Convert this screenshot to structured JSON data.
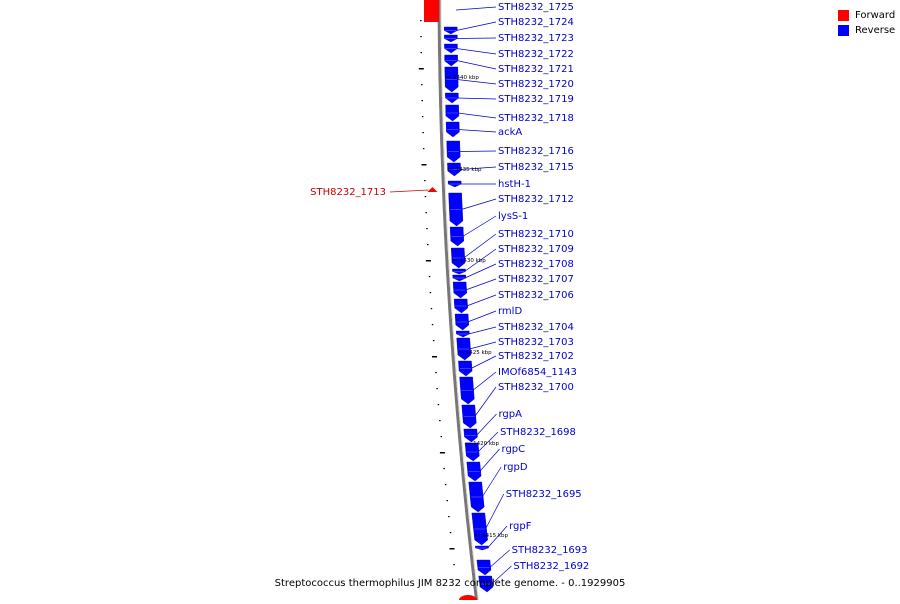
{
  "caption": "Streptococcus thermophilus JIM 8232 complete genome. - 0..1929905",
  "legend": {
    "placement": "top-right",
    "items": [
      {
        "label": "Forward",
        "color": "#ff0000"
      },
      {
        "label": "Reverse",
        "color": "#0000ff"
      }
    ]
  },
  "colors": {
    "forward": "#ff0000",
    "reverse": "#0000ff",
    "forward_label": "#cc0000",
    "reverse_label": "#0000cc",
    "backbone": "#888888"
  },
  "scale_labels": [
    "1440 kbp",
    "1435 kbp",
    "1430 kbp",
    "1425 kbp",
    "1420 kbp",
    "1415 kbp"
  ],
  "genes": [
    {
      "name": "STH8232_1725",
      "strand": "reverse"
    },
    {
      "name": "STH8232_1724",
      "strand": "reverse"
    },
    {
      "name": "STH8232_1723",
      "strand": "reverse"
    },
    {
      "name": "STH8232_1722",
      "strand": "reverse"
    },
    {
      "name": "STH8232_1721",
      "strand": "reverse"
    },
    {
      "name": "STH8232_1720",
      "strand": "reverse"
    },
    {
      "name": "STH8232_1719",
      "strand": "reverse"
    },
    {
      "name": "STH8232_1718",
      "strand": "reverse"
    },
    {
      "name": "ackA",
      "strand": "reverse"
    },
    {
      "name": "STH8232_1716",
      "strand": "reverse"
    },
    {
      "name": "STH8232_1715",
      "strand": "reverse"
    },
    {
      "name": "hstH-1",
      "strand": "reverse"
    },
    {
      "name": "STH8232_1713",
      "strand": "forward"
    },
    {
      "name": "STH8232_1712",
      "strand": "reverse"
    },
    {
      "name": "lysS-1",
      "strand": "reverse"
    },
    {
      "name": "STH8232_1710",
      "strand": "reverse"
    },
    {
      "name": "STH8232_1709",
      "strand": "reverse"
    },
    {
      "name": "STH8232_1708",
      "strand": "reverse"
    },
    {
      "name": "STH8232_1707",
      "strand": "reverse"
    },
    {
      "name": "STH8232_1706",
      "strand": "reverse"
    },
    {
      "name": "rmlD",
      "strand": "reverse"
    },
    {
      "name": "STH8232_1704",
      "strand": "reverse"
    },
    {
      "name": "STH8232_1703",
      "strand": "reverse"
    },
    {
      "name": "STH8232_1702",
      "strand": "reverse"
    },
    {
      "name": "IMOf6854_1143",
      "strand": "reverse"
    },
    {
      "name": "STH8232_1700",
      "strand": "reverse"
    },
    {
      "name": "rgpA",
      "strand": "reverse"
    },
    {
      "name": "STH8232_1698",
      "strand": "reverse"
    },
    {
      "name": "rgpC",
      "strand": "reverse"
    },
    {
      "name": "rgpD",
      "strand": "reverse"
    },
    {
      "name": "STH8232_1695",
      "strand": "reverse"
    },
    {
      "name": "rgpF",
      "strand": "reverse"
    },
    {
      "name": "STH8232_1693",
      "strand": "reverse"
    },
    {
      "name": "STH8232_1692",
      "strand": "reverse"
    }
  ]
}
